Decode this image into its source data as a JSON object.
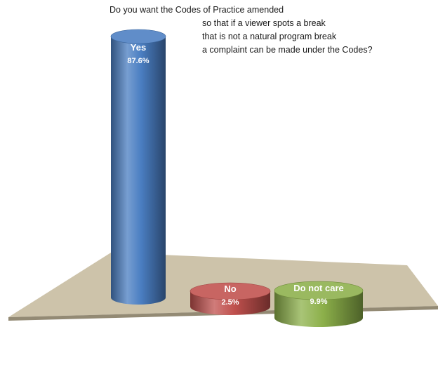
{
  "chart_data": {
    "type": "bar",
    "style": "3d-cylinder",
    "title_lines": [
      "Do you want the Codes of Practice amended",
      "so that if a viewer spots a break",
      "that is not a natural program break",
      "a complaint can be made under the Codes?"
    ],
    "categories": [
      "Yes",
      "No",
      "Do not care"
    ],
    "values": [
      87.6,
      2.5,
      9.9
    ],
    "value_labels": [
      "87.6%",
      "2.5%",
      "9.9%"
    ],
    "unit": "%",
    "colors": [
      "#4a7ec2",
      "#c0504d",
      "#8cb04a"
    ],
    "floor_color": "#c4b89b",
    "grid": false,
    "legend": "none"
  }
}
